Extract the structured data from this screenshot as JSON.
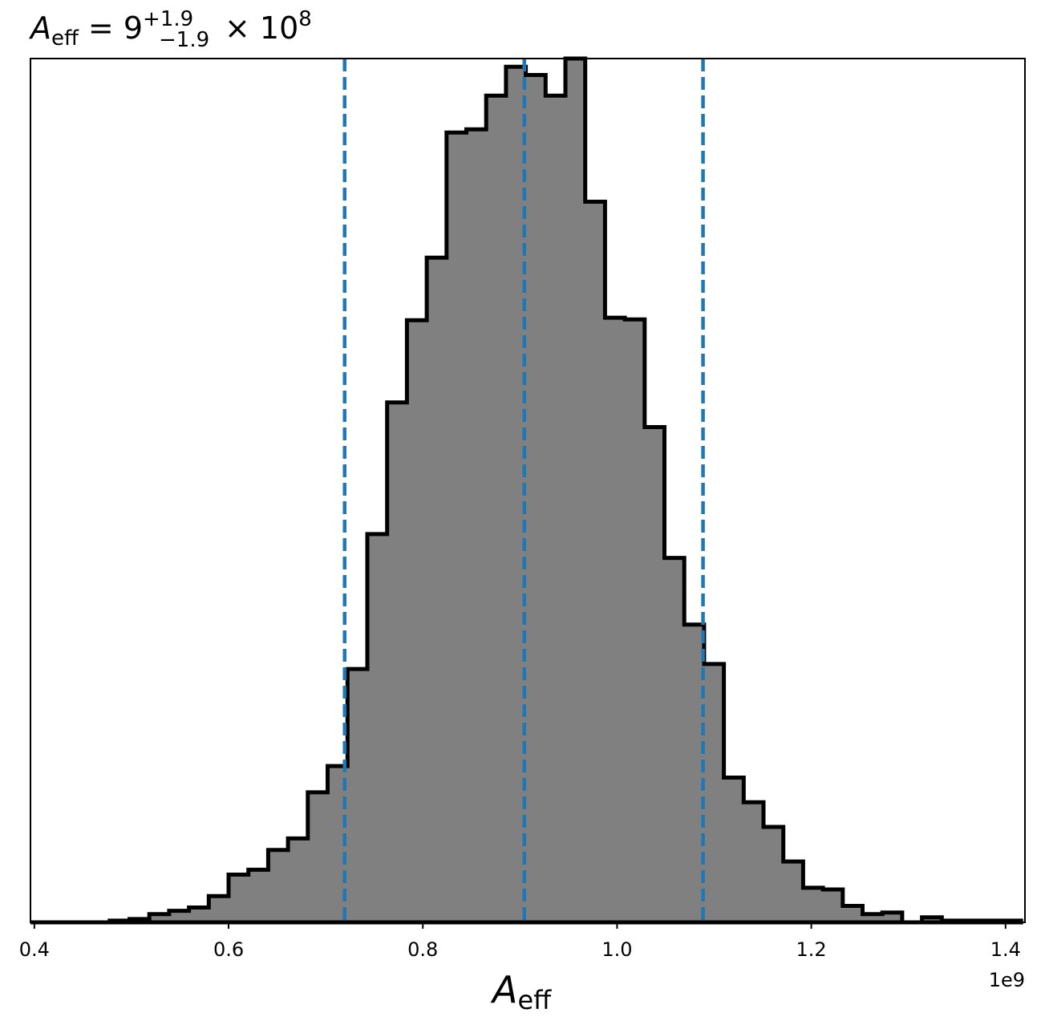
{
  "chart_data": {
    "type": "histogram",
    "title": {
      "symbol": "A",
      "symbol_sub": "eff",
      "equals": "= 9",
      "sup": "+1.9",
      "sub": "−1.9",
      "times": "× 10",
      "exp": "8"
    },
    "xlabel": {
      "symbol": "A",
      "sub": "eff"
    },
    "x_offset_label": "1e9",
    "xlim": [
      0.396,
      1.42
    ],
    "ylim": [
      0,
      1050
    ],
    "x_ticks": [
      0.4,
      0.6,
      0.8,
      1.0,
      1.2,
      1.4
    ],
    "x_tick_labels": [
      "0.4",
      "0.6",
      "0.8",
      "1.0",
      "1.2",
      "1.4"
    ],
    "y_ticks_shown": false,
    "bin_width": 0.0204,
    "bin_edges_start": 0.396,
    "counts": [
      0,
      0,
      0,
      0,
      2,
      4,
      10,
      14,
      18,
      32,
      58,
      64,
      88,
      102,
      158,
      190,
      308,
      472,
      632,
      732,
      808,
      960,
      964,
      1005,
      1040,
      1030,
      1005,
      1050,
      876,
      735,
      733,
      602,
      443,
      362,
      314,
      176,
      146,
      116,
      74,
      42,
      40,
      20,
      10,
      12,
      0,
      6,
      2,
      2,
      2,
      2
    ],
    "fill_color": "#808080",
    "edge_color": "#000000",
    "quantile_lines": [
      0.7195,
      0.9045,
      1.0885
    ],
    "quantile_color": "#1f77b4",
    "zero_line_style": "dotted"
  }
}
